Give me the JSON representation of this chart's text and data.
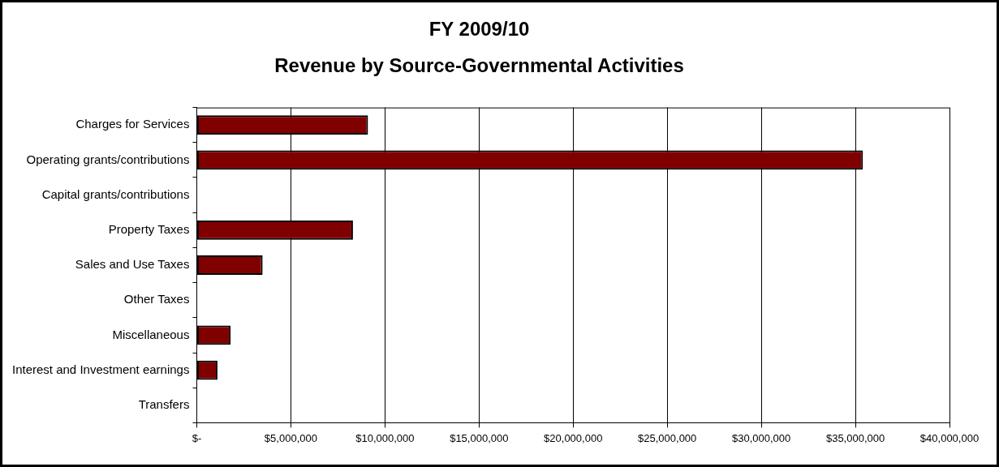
{
  "chart_data": {
    "type": "bar",
    "orientation": "horizontal",
    "title": "FY 2009/10",
    "subtitle": "Revenue by Source-Governmental Activities",
    "categories": [
      "Charges for Services",
      "Operating grants/contributions",
      "Capital grants/contributions",
      "Property Taxes",
      "Sales and Use Taxes",
      "Other Taxes",
      "Miscellaneous",
      "Interest and Investment earnings",
      "Transfers"
    ],
    "values": [
      9100000,
      35400000,
      0,
      8300000,
      3500000,
      0,
      1800000,
      1100000,
      0
    ],
    "color": "#800000",
    "xlim": [
      0,
      40000000
    ],
    "xticks": [
      {
        "value": 0,
        "label": "$-"
      },
      {
        "value": 5000000,
        "label": "$5,000,000"
      },
      {
        "value": 10000000,
        "label": "$10,000,000"
      },
      {
        "value": 15000000,
        "label": "$15,000,000"
      },
      {
        "value": 20000000,
        "label": "$20,000,000"
      },
      {
        "value": 25000000,
        "label": "$25,000,000"
      },
      {
        "value": 30000000,
        "label": "$30,000,000"
      },
      {
        "value": 35000000,
        "label": "$35,000,000"
      },
      {
        "value": 40000000,
        "label": "$40,000,000"
      }
    ],
    "grid": "x"
  }
}
